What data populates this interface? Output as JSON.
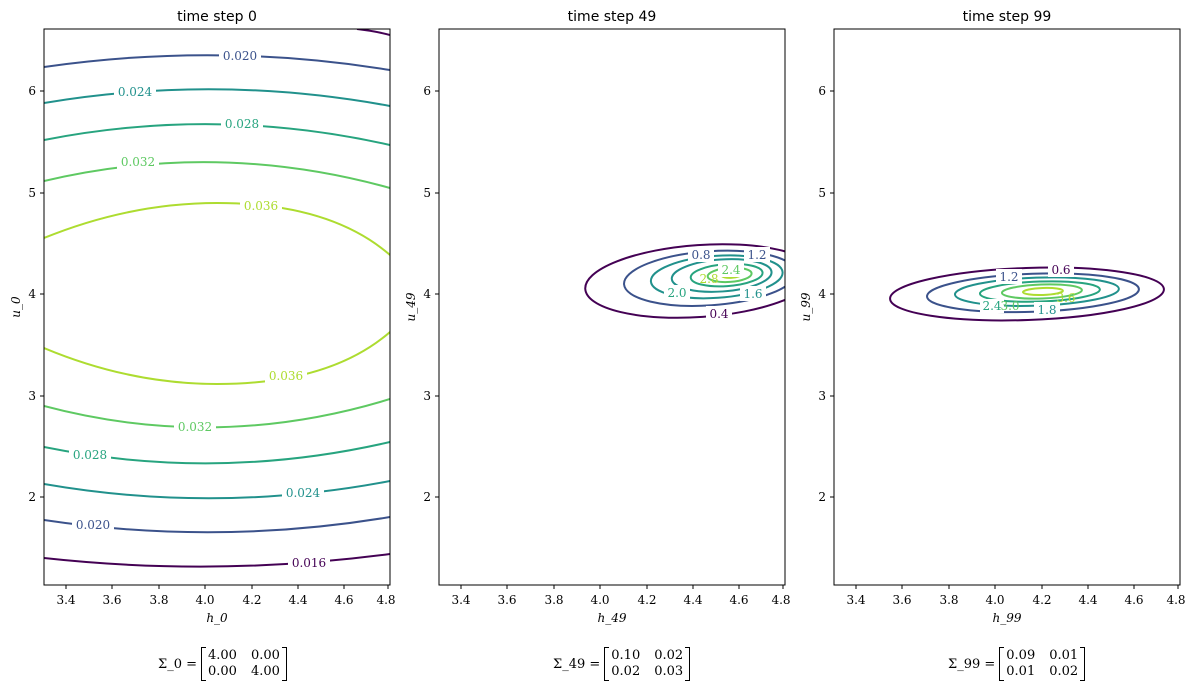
{
  "colors": {
    "levels": [
      "#440154",
      "#3b528b",
      "#21918c",
      "#27a47f",
      "#5ec962",
      "#addc30"
    ]
  },
  "chart_data": [
    {
      "type": "contour",
      "title": "time step 0",
      "xlabel": "h_0",
      "ylabel": "u_0",
      "xlim": [
        3.28,
        4.82
      ],
      "ylim": [
        1.12,
        6.62
      ],
      "xticks": [
        "3.4",
        "3.6",
        "3.8",
        "4.0",
        "4.2",
        "4.4",
        "4.6",
        "4.8"
      ],
      "yticks": [
        "2",
        "3",
        "4",
        "5",
        "6"
      ],
      "mean": [
        4.0,
        4.0
      ],
      "covariance": [
        [
          4.0,
          0.0
        ],
        [
          0.0,
          4.0
        ]
      ],
      "contour_labels": [
        "0.016",
        "0.020",
        "0.024",
        "0.028",
        "0.032",
        "0.036"
      ],
      "sigma_label": "Σ_0 =",
      "sigma_matrix": [
        "4.00",
        "0.00",
        "0.00",
        "4.00"
      ]
    },
    {
      "type": "contour",
      "title": "time step 49",
      "xlabel": "h_49",
      "ylabel": "u_49",
      "xlim": [
        3.28,
        4.82
      ],
      "ylim": [
        1.12,
        6.62
      ],
      "xticks": [
        "3.4",
        "3.6",
        "3.8",
        "4.0",
        "4.2",
        "4.4",
        "4.6",
        "4.8"
      ],
      "yticks": [
        "2",
        "3",
        "4",
        "5",
        "6"
      ],
      "mean": [
        4.55,
        4.15
      ],
      "covariance": [
        [
          0.1,
          0.02
        ],
        [
          0.02,
          0.03
        ]
      ],
      "contour_labels": [
        "0.4",
        "0.8",
        "1.2",
        "1.6",
        "2.0",
        "2.4",
        "2.8"
      ],
      "sigma_label": "Σ_49 =",
      "sigma_matrix": [
        "0.10",
        "0.02",
        "0.02",
        "0.03"
      ]
    },
    {
      "type": "contour",
      "title": "time step 99",
      "xlabel": "h_99",
      "ylabel": "u_99",
      "xlim": [
        3.28,
        4.82
      ],
      "ylim": [
        1.12,
        6.62
      ],
      "xticks": [
        "3.4",
        "3.6",
        "3.8",
        "4.0",
        "4.2",
        "4.4",
        "4.6",
        "4.8"
      ],
      "yticks": [
        "2",
        "3",
        "4",
        "5",
        "6"
      ],
      "mean": [
        4.15,
        4.0
      ],
      "covariance": [
        [
          0.09,
          0.01
        ],
        [
          0.01,
          0.02
        ]
      ],
      "contour_labels": [
        "0.6",
        "1.2",
        "1.8",
        "2.4",
        "3.0",
        "3.6"
      ],
      "sigma_label": "Σ_99 =",
      "sigma_matrix": [
        "0.09",
        "0.01",
        "0.01",
        "0.02"
      ]
    }
  ]
}
